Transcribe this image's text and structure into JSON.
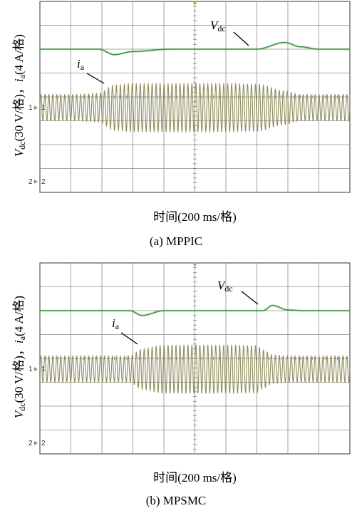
{
  "chart_data": [
    {
      "type": "line",
      "caption": "(a) MPPIC",
      "xlabel": "时间(200 ms/格)",
      "ylabel": {
        "v_sym": "V",
        "v_sub": "dc",
        "v_scale": "(30 V/格)，",
        "i_sym": "i",
        "i_sub": "a",
        "i_scale": "(4 A/格)"
      },
      "grid": {
        "x_divisions": 10,
        "y_divisions": 8
      },
      "channel_markers": [
        "1",
        "2"
      ],
      "annotations": {
        "vdc": {
          "sym": "V",
          "sub": "dc"
        },
        "ia": {
          "sym": "i",
          "sub": "a"
        }
      },
      "x": [
        0,
        0.5,
        1.0,
        1.2,
        1.9,
        2.4,
        3.0,
        4.2,
        5.0,
        6.0,
        7.0,
        7.9,
        8.4,
        9.0,
        10.0
      ],
      "series": [
        {
          "key": "vdc",
          "color": "#3f9a3f",
          "level_div": 6.0,
          "values": [
            0,
            0,
            0,
            0,
            0,
            -0.23,
            -0.1,
            0,
            0,
            0,
            0,
            0.28,
            0.1,
            0,
            0
          ]
        },
        {
          "key": "ia",
          "color": "#8d8b5a",
          "level_div": 3.55,
          "cycles": 78,
          "amplitude": [
            0.55,
            0.55,
            0.55,
            0.55,
            0.6,
            0.95,
            1.0,
            1.0,
            1.0,
            1.0,
            0.98,
            0.7,
            0.55,
            0.55,
            0.55
          ]
        }
      ]
    },
    {
      "type": "line",
      "caption": "(b) MPSMC",
      "xlabel": "时间(200 ms/格)",
      "ylabel": {
        "v_sym": "V",
        "v_sub": "dc",
        "v_scale": "(30 V/格)，",
        "i_sym": "i",
        "i_sub": "a",
        "i_scale": "(4 A/格)"
      },
      "grid": {
        "x_divisions": 10,
        "y_divisions": 8
      },
      "channel_markers": [
        "1",
        "2"
      ],
      "annotations": {
        "vdc": {
          "sym": "V",
          "sub": "dc"
        },
        "ia": {
          "sym": "i",
          "sub": "a"
        }
      },
      "x": [
        0,
        1.0,
        2.0,
        2.9,
        3.3,
        4.0,
        5.0,
        6.0,
        7.0,
        7.2,
        7.5,
        8.0,
        8.5,
        10.0
      ],
      "series": [
        {
          "key": "vdc",
          "color": "#3f9a3f",
          "level_div": 6.0,
          "values": [
            0,
            0,
            0,
            0,
            -0.2,
            0,
            0,
            0,
            0,
            0,
            0.22,
            0.03,
            0,
            0
          ]
        },
        {
          "key": "ia",
          "color": "#8d8b5a",
          "level_div": 3.55,
          "cycles": 78,
          "amplitude": [
            0.55,
            0.55,
            0.55,
            0.55,
            0.85,
            1.0,
            1.0,
            1.0,
            0.98,
            0.8,
            0.6,
            0.55,
            0.55,
            0.55
          ]
        }
      ]
    }
  ]
}
